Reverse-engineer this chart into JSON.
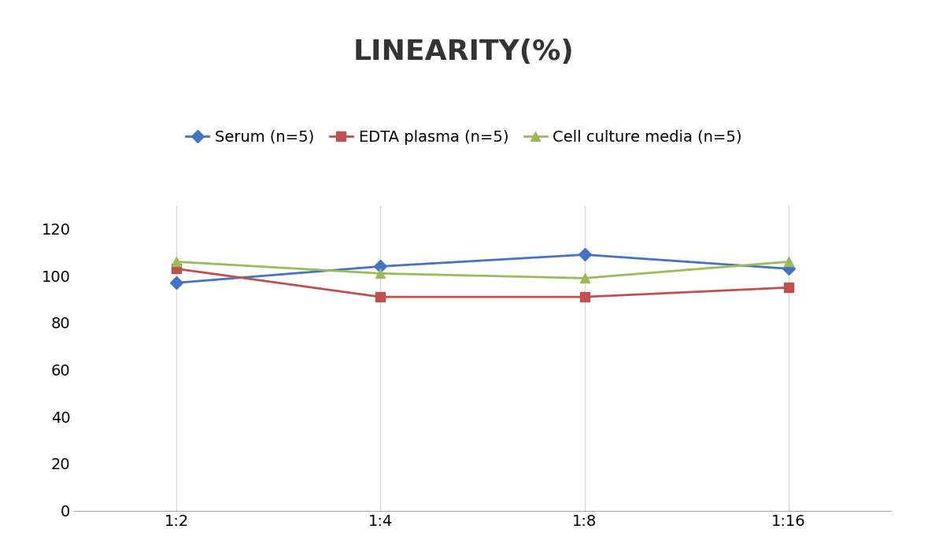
{
  "title": "LINEARITY(%)",
  "x_labels": [
    "1:2",
    "1:4",
    "1:8",
    "1:16"
  ],
  "x_positions": [
    0,
    1,
    2,
    3
  ],
  "series": [
    {
      "label": "Serum (n=5)",
      "values": [
        97,
        104,
        109,
        103
      ],
      "color": "#4472C4",
      "marker": "D",
      "markersize": 8,
      "linewidth": 2
    },
    {
      "label": "EDTA plasma (n=5)",
      "values": [
        103,
        91,
        91,
        95
      ],
      "color": "#C0504D",
      "marker": "s",
      "markersize": 8,
      "linewidth": 2
    },
    {
      "label": "Cell culture media (n=5)",
      "values": [
        106,
        101,
        99,
        106
      ],
      "color": "#9BBB59",
      "marker": "^",
      "markersize": 8,
      "linewidth": 2
    }
  ],
  "ylim": [
    0,
    130
  ],
  "yticks": [
    0,
    20,
    40,
    60,
    80,
    100,
    120
  ],
  "background_color": "#ffffff",
  "grid_color": "#d8d8d8",
  "title_fontsize": 26,
  "legend_fontsize": 14,
  "tick_fontsize": 14
}
